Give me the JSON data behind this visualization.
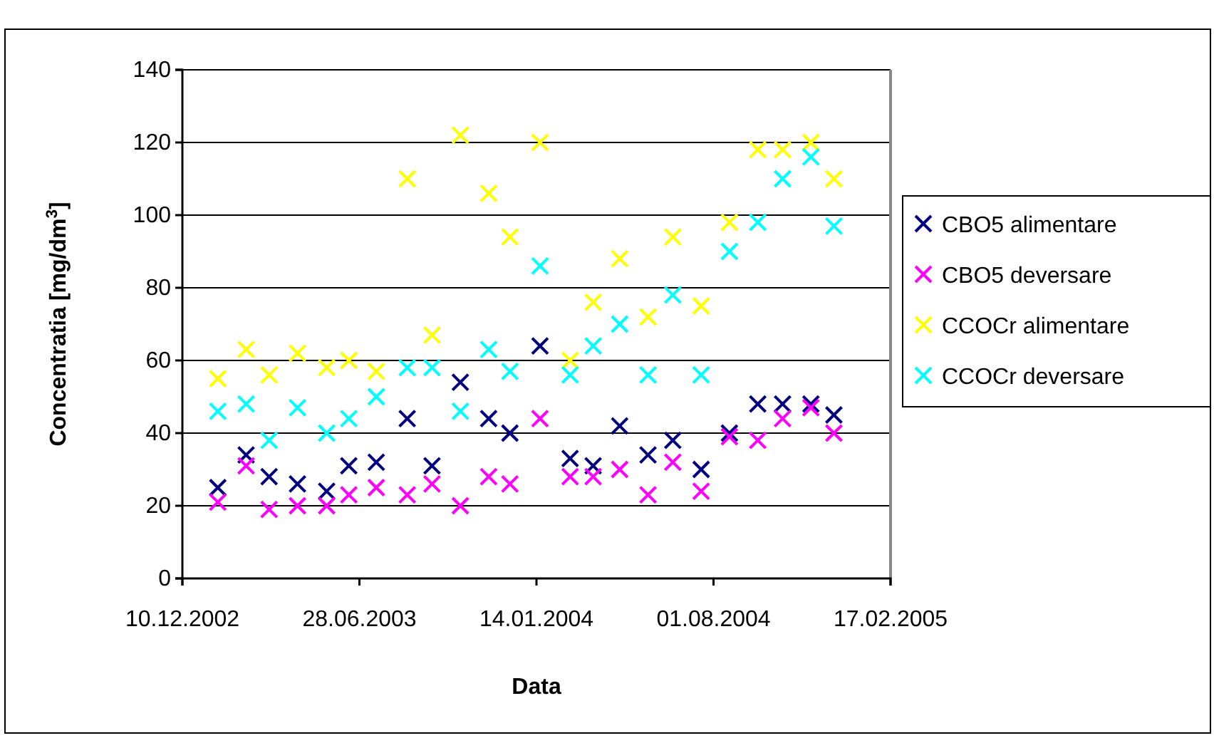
{
  "chart_data": {
    "type": "scatter",
    "xlabel": "Data",
    "ylabel": "Concentratia [mg/dm$^{3}$]",
    "x": [
      "2003-01-19",
      "2003-02-20",
      "2003-03-18",
      "2003-04-19",
      "2003-05-22",
      "2003-06-16",
      "2003-07-17",
      "2003-08-21",
      "2003-09-18",
      "2003-10-20",
      "2003-11-21",
      "2003-12-15",
      "2004-01-18",
      "2004-02-21",
      "2004-03-18",
      "2004-04-17",
      "2004-05-19",
      "2004-06-16",
      "2004-07-18",
      "2004-08-19",
      "2004-09-20",
      "2004-10-18",
      "2004-11-19",
      "2004-12-15"
    ],
    "series": [
      {
        "name": "CBO5 alimentare",
        "color": "#000080",
        "marker": "cross",
        "values": [
          25,
          34,
          28,
          26,
          24,
          31,
          32,
          44,
          31,
          54,
          44,
          40,
          64,
          33,
          31,
          42,
          34,
          38,
          30,
          40,
          48,
          48,
          48,
          45
        ]
      },
      {
        "name": "CBO5 deversare",
        "color": "#ff00ff",
        "marker": "cross",
        "values": [
          21,
          31,
          19,
          20,
          20,
          23,
          25,
          23,
          26,
          20,
          28,
          26,
          44,
          28,
          28,
          30,
          23,
          32,
          24,
          39,
          38,
          44,
          47,
          40
        ]
      },
      {
        "name": "CCOCr alimentare",
        "color": "#ffff00",
        "marker": "cross",
        "values": [
          55,
          63,
          56,
          62,
          58,
          60,
          57,
          110,
          67,
          122,
          106,
          94,
          120,
          60,
          76,
          88,
          72,
          94,
          75,
          98,
          118,
          118,
          120,
          110
        ]
      },
      {
        "name": "CCOCr deversare",
        "color": "#00ffff",
        "marker": "cross",
        "values": [
          46,
          48,
          38,
          47,
          40,
          44,
          50,
          58,
          58,
          46,
          63,
          57,
          86,
          56,
          64,
          70,
          56,
          78,
          56,
          90,
          98,
          110,
          116,
          97
        ]
      }
    ],
    "xlim": [
      "2002-12-10",
      "2005-02-17"
    ],
    "xticks": [
      {
        "value": "2002-12-10",
        "label": "10.12.2002"
      },
      {
        "value": "2003-06-28",
        "label": "28.06.2003"
      },
      {
        "value": "2004-01-14",
        "label": "14.01.2004"
      },
      {
        "value": "2004-08-01",
        "label": "01.08.2004"
      },
      {
        "value": "2005-02-17",
        "label": "17.02.2005"
      }
    ],
    "ylim": [
      0,
      140
    ],
    "yticks": [
      0,
      20,
      40,
      60,
      80,
      100,
      120,
      140
    ],
    "grid": "y",
    "legend": "right"
  }
}
